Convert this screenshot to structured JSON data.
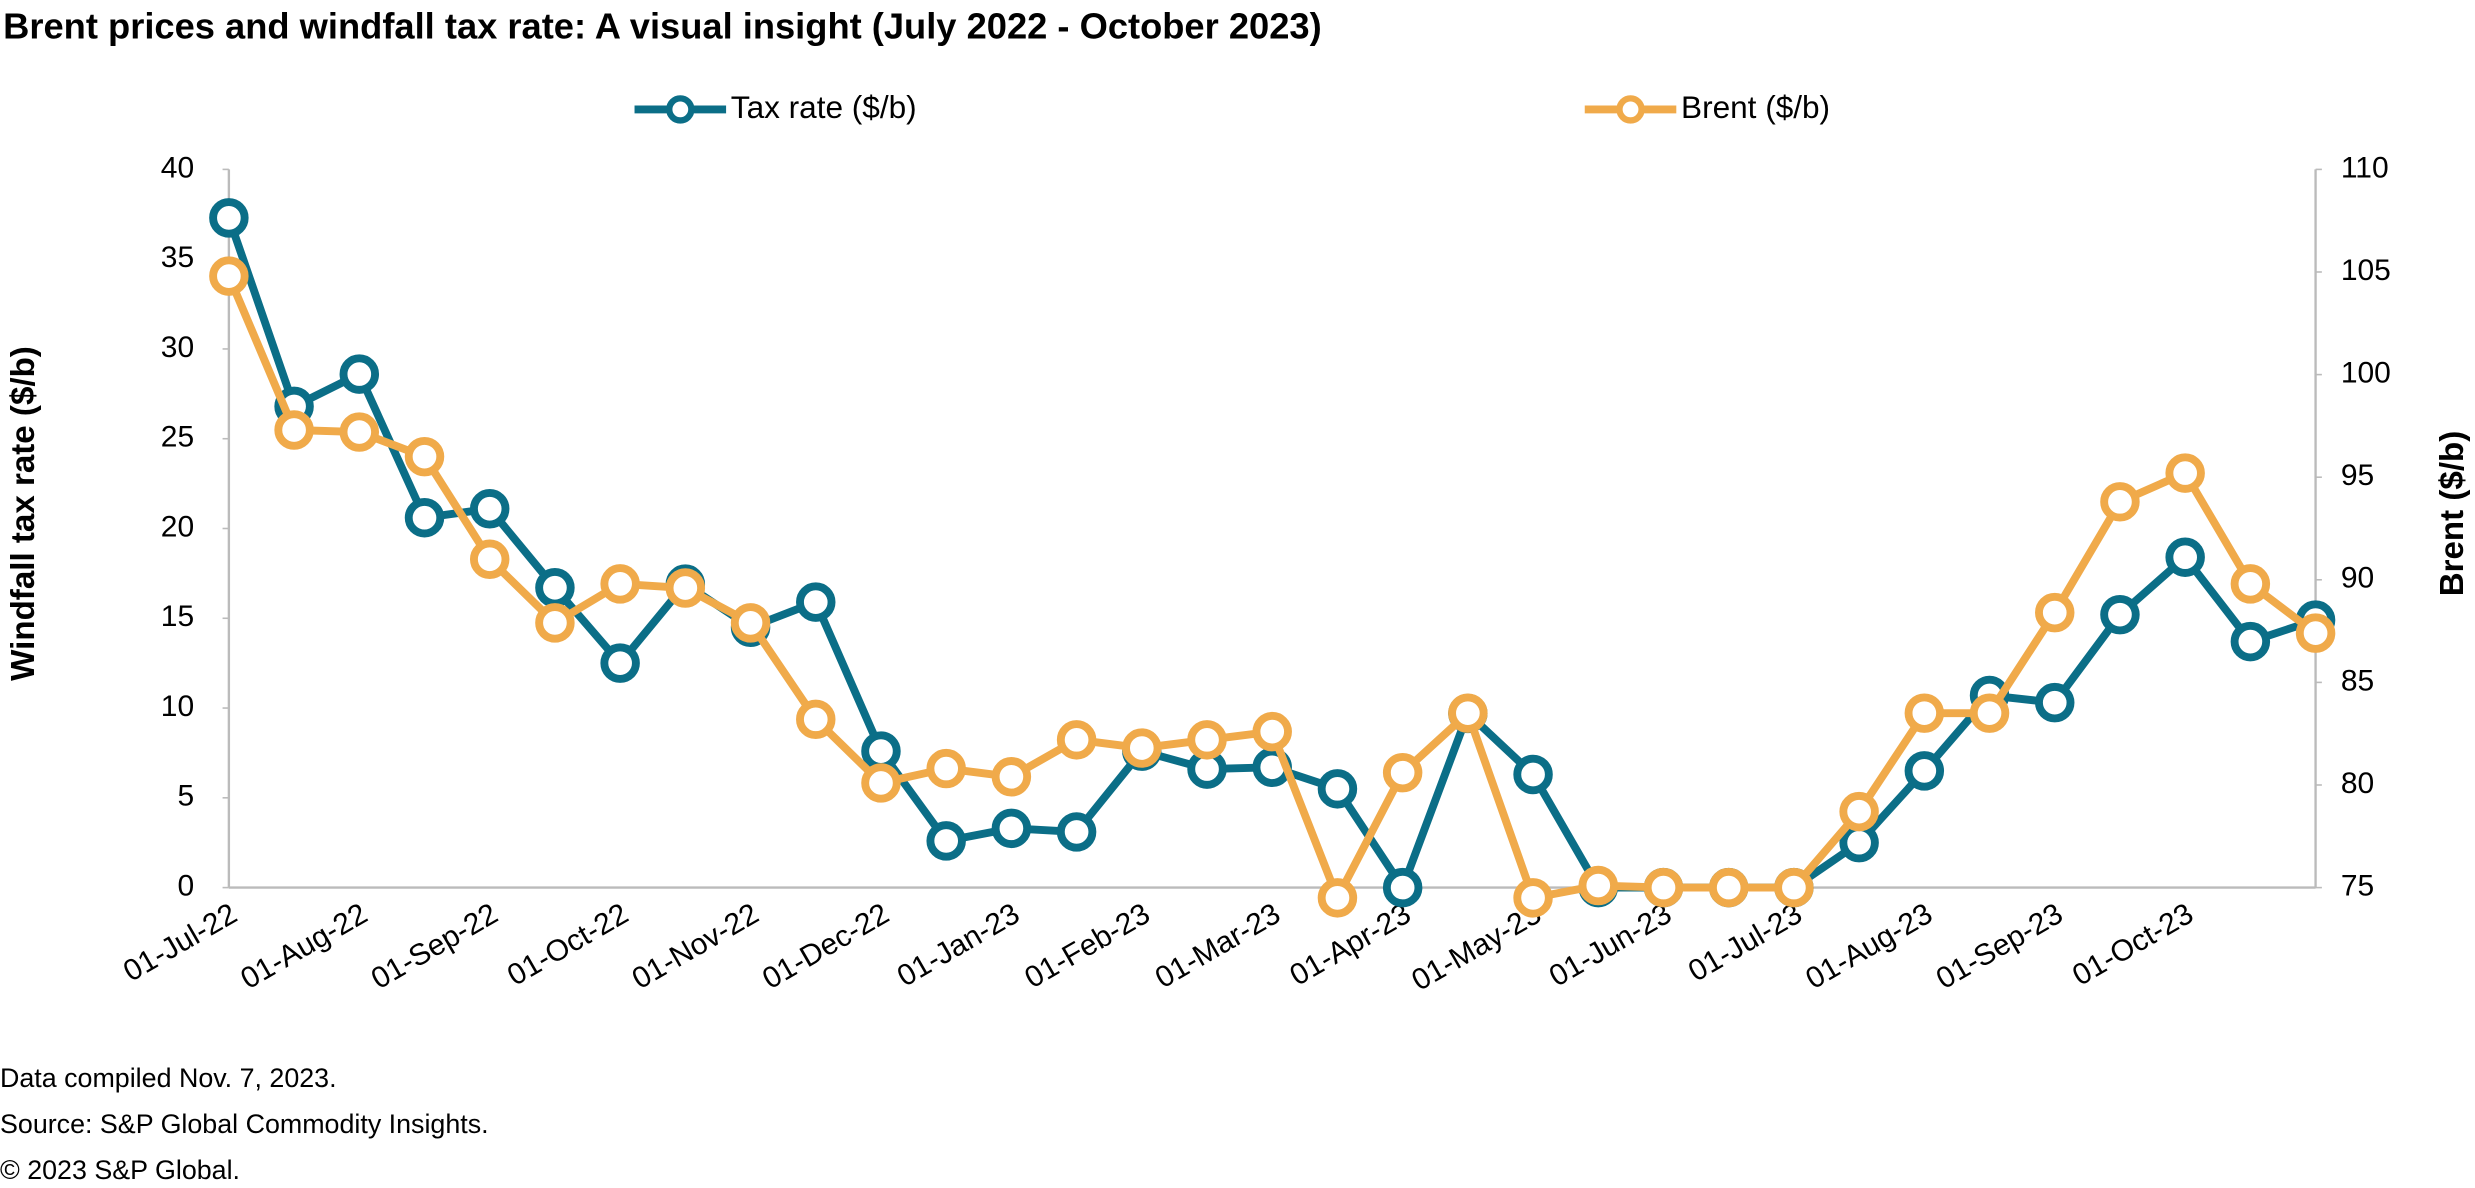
{
  "chart_data": {
    "type": "line",
    "title": "Brent prices and windfall tax rate: A visual insight (July 2022 - October 2023)",
    "y_label": "Windfall tax rate ($/b)",
    "y2_label": "Brent ($/b)",
    "categories": [
      "01-Jul-22",
      null,
      "01-Aug-22",
      null,
      "01-Sep-22",
      null,
      "01-Oct-22",
      null,
      "01-Nov-22",
      null,
      "01-Dec-22",
      null,
      "01-Jan-23",
      null,
      "01-Feb-23",
      null,
      "01-Mar-23",
      null,
      "01-Apr-23",
      null,
      "01-May-23",
      null,
      "01-Jun-23",
      null,
      "01-Jul-23",
      null,
      "01-Aug-23",
      null,
      "01-Sep-23",
      null,
      "01-Oct-23",
      null,
      null
    ],
    "series": [
      {
        "name": "Tax rate ($/b)",
        "color": "#0b6e87",
        "values": [
          37.3,
          26.8,
          28.6,
          20.6,
          21.1,
          16.7,
          12.5,
          16.9,
          14.5,
          15.9,
          7.6,
          2.6,
          3.3,
          3.1,
          7.6,
          6.6,
          6.7,
          5.5,
          0,
          9.7,
          6.3,
          0,
          0,
          0,
          0,
          2.5,
          6.5,
          10.7,
          10.3,
          15.2,
          18.4,
          13.7,
          14.9
        ]
      },
      {
        "name": "Brent ($/b)",
        "color": "#f0aa4a",
        "axis": "y2",
        "values": [
          104.8,
          97.3,
          97.2,
          96.0,
          91.0,
          87.9,
          89.8,
          89.6,
          87.9,
          83.2,
          80.1,
          80.8,
          80.4,
          82.2,
          81.8,
          82.2,
          82.6,
          74.5,
          80.6,
          83.5,
          74.5,
          75.1,
          75,
          75,
          75,
          78.7,
          83.5,
          83.5,
          88.4,
          93.8,
          95.2,
          89.8,
          87.4
        ]
      }
    ],
    "ylim": [
      0,
      40
    ],
    "yticks": [
      0,
      5,
      10,
      15,
      20,
      25,
      30,
      35,
      40
    ],
    "y2lim": [
      75,
      110
    ],
    "y2ticks": [
      75,
      80,
      85,
      90,
      95,
      100,
      105,
      110
    ],
    "grid": false,
    "notes": [
      "Data compiled Nov. 7, 2023.",
      "Source: S&P Global Commodity Insights.",
      "© 2023 S&P Global."
    ]
  }
}
